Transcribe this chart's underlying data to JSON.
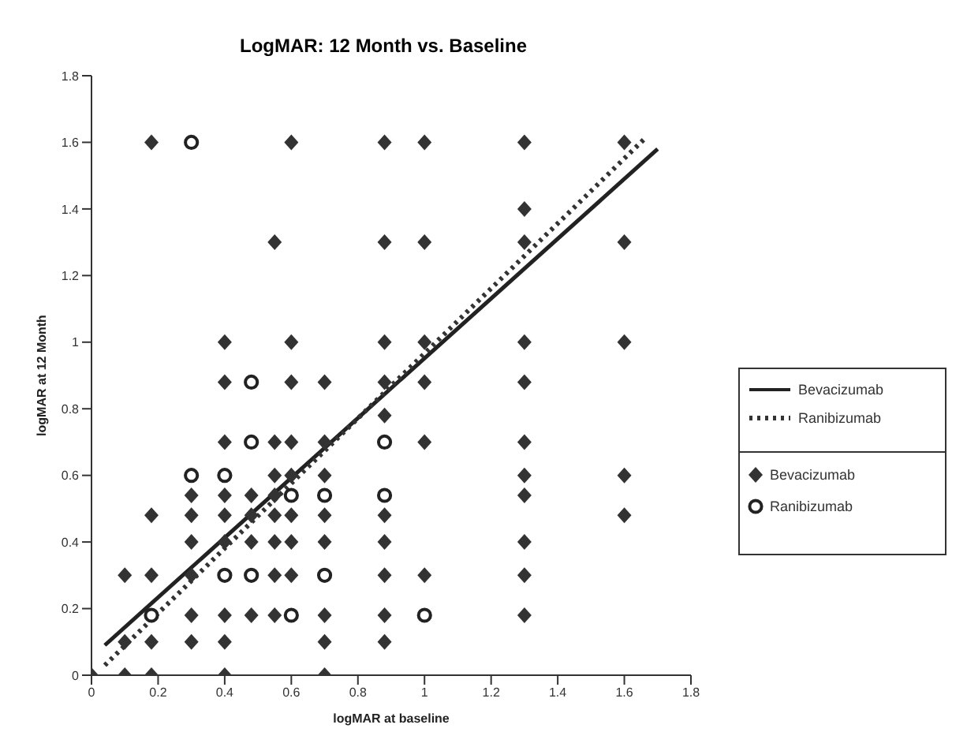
{
  "chart_data": {
    "type": "scatter",
    "title": "LogMAR: 12 Month vs. Baseline",
    "xlabel": "logMAR at baseline",
    "ylabel": "logMAR at 12 Month",
    "xlim": [
      0,
      1.8
    ],
    "ylim": [
      0,
      1.8
    ],
    "xticks": [
      0,
      0.2,
      0.4,
      0.6,
      0.8,
      1,
      1.2,
      1.4,
      1.6,
      1.8
    ],
    "yticks": [
      0,
      0.2,
      0.4,
      0.6,
      0.8,
      1,
      1.2,
      1.4,
      1.6,
      1.8
    ],
    "grid": false,
    "legend": "right",
    "series": [
      {
        "name": "Bevacizumab",
        "type": "line",
        "color": "#222222",
        "line_style": "solid",
        "marker": "none",
        "x": [
          0.04,
          1.7
        ],
        "values": [
          0.09,
          1.58
        ]
      },
      {
        "name": "Ranibizumab",
        "type": "line",
        "color": "#333333",
        "line_style": "dotted",
        "marker": "none",
        "x": [
          0.04,
          1.66
        ],
        "values": [
          0.03,
          1.61
        ]
      },
      {
        "name": "Bevacizumab",
        "type": "scatter",
        "color": "#333333",
        "marker": "diamond",
        "x": [
          0.18,
          0.6,
          0.88,
          1.0,
          1.3,
          1.6,
          1.3,
          0.55,
          0.88,
          1.0,
          1.3,
          1.6,
          0.4,
          0.6,
          0.88,
          1.0,
          1.3,
          1.6,
          0.4,
          0.6,
          0.7,
          0.88,
          1.0,
          1.3,
          0.88,
          0.4,
          0.55,
          0.6,
          0.7,
          1.0,
          1.3,
          0.55,
          0.6,
          0.7,
          1.3,
          1.6,
          0.3,
          0.4,
          0.48,
          0.55,
          1.3,
          0.18,
          0.3,
          0.4,
          0.48,
          0.55,
          0.6,
          0.7,
          0.88,
          1.6,
          0.3,
          0.4,
          0.48,
          0.55,
          0.6,
          0.7,
          0.88,
          1.3,
          0.1,
          0.18,
          0.3,
          0.55,
          0.6,
          0.88,
          1.0,
          1.3,
          0.3,
          0.4,
          0.48,
          0.55,
          0.7,
          0.88,
          1.3,
          0.1,
          0.18,
          0.3,
          0.4,
          0.7,
          0.88,
          0,
          0.1,
          0.18,
          0.4,
          0.7
        ],
        "values": [
          1.6,
          1.6,
          1.6,
          1.6,
          1.6,
          1.6,
          1.4,
          1.3,
          1.3,
          1.3,
          1.3,
          1.3,
          1.0,
          1.0,
          1.0,
          1.0,
          1.0,
          1.0,
          0.88,
          0.88,
          0.88,
          0.88,
          0.88,
          0.88,
          0.78,
          0.7,
          0.7,
          0.7,
          0.7,
          0.7,
          0.7,
          0.6,
          0.6,
          0.6,
          0.6,
          0.6,
          0.54,
          0.54,
          0.54,
          0.54,
          0.54,
          0.48,
          0.48,
          0.48,
          0.48,
          0.48,
          0.48,
          0.48,
          0.48,
          0.48,
          0.4,
          0.4,
          0.4,
          0.4,
          0.4,
          0.4,
          0.4,
          0.4,
          0.3,
          0.3,
          0.3,
          0.3,
          0.3,
          0.3,
          0.3,
          0.3,
          0.18,
          0.18,
          0.18,
          0.18,
          0.18,
          0.18,
          0.18,
          0.1,
          0.1,
          0.1,
          0.1,
          0.1,
          0.1,
          0,
          0,
          0,
          0,
          0
        ]
      },
      {
        "name": "Ranibizumab",
        "type": "scatter",
        "color": "#222222",
        "marker": "circle",
        "x": [
          0.3,
          0.48,
          0.48,
          0.88,
          0.3,
          0.4,
          0.6,
          0.7,
          0.88,
          0.4,
          0.48,
          0.7,
          0.18,
          0.6,
          1.0
        ],
        "values": [
          1.6,
          0.88,
          0.7,
          0.7,
          0.6,
          0.6,
          0.54,
          0.54,
          0.54,
          0.3,
          0.3,
          0.3,
          0.18,
          0.18,
          0.18
        ]
      }
    ]
  }
}
